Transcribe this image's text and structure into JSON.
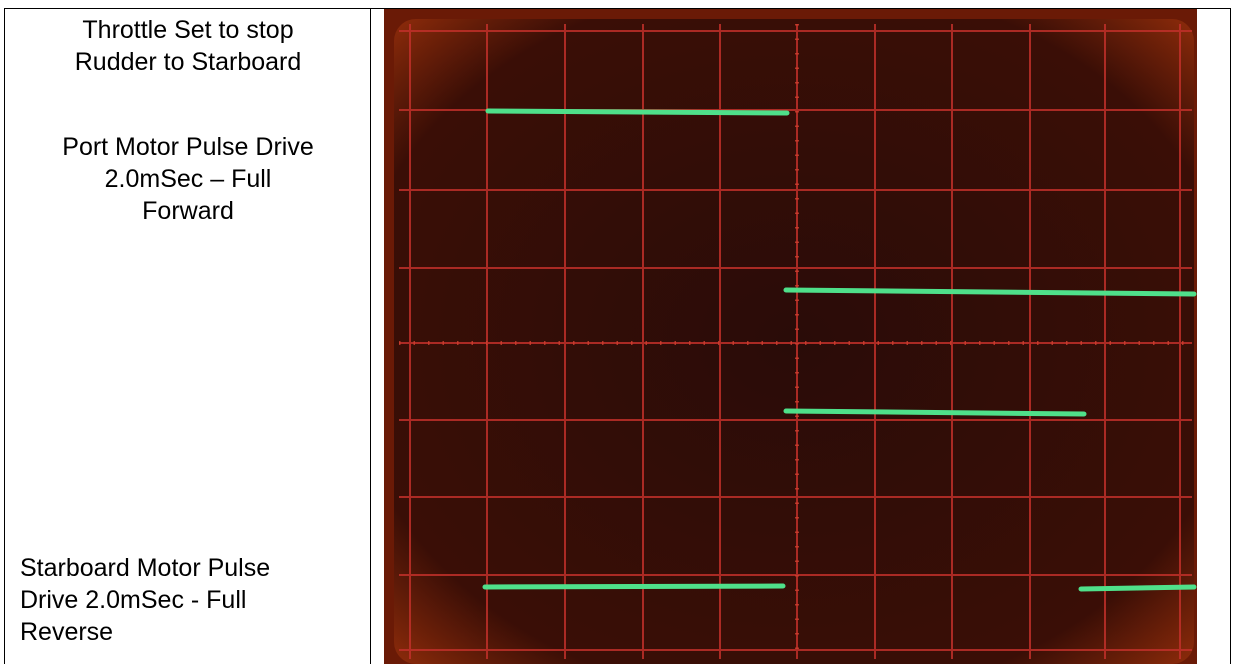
{
  "left_cell": {
    "heading": [
      "Throttle Set to stop",
      "Rudder to Starboard"
    ],
    "port_motor": [
      "Port Motor Pulse Drive",
      "2.0mSec – Full",
      "Forward"
    ],
    "starboard_motor": [
      "Starboard Motor Pulse",
      "Drive 2.0mSec - Full",
      "Reverse"
    ]
  }
}
